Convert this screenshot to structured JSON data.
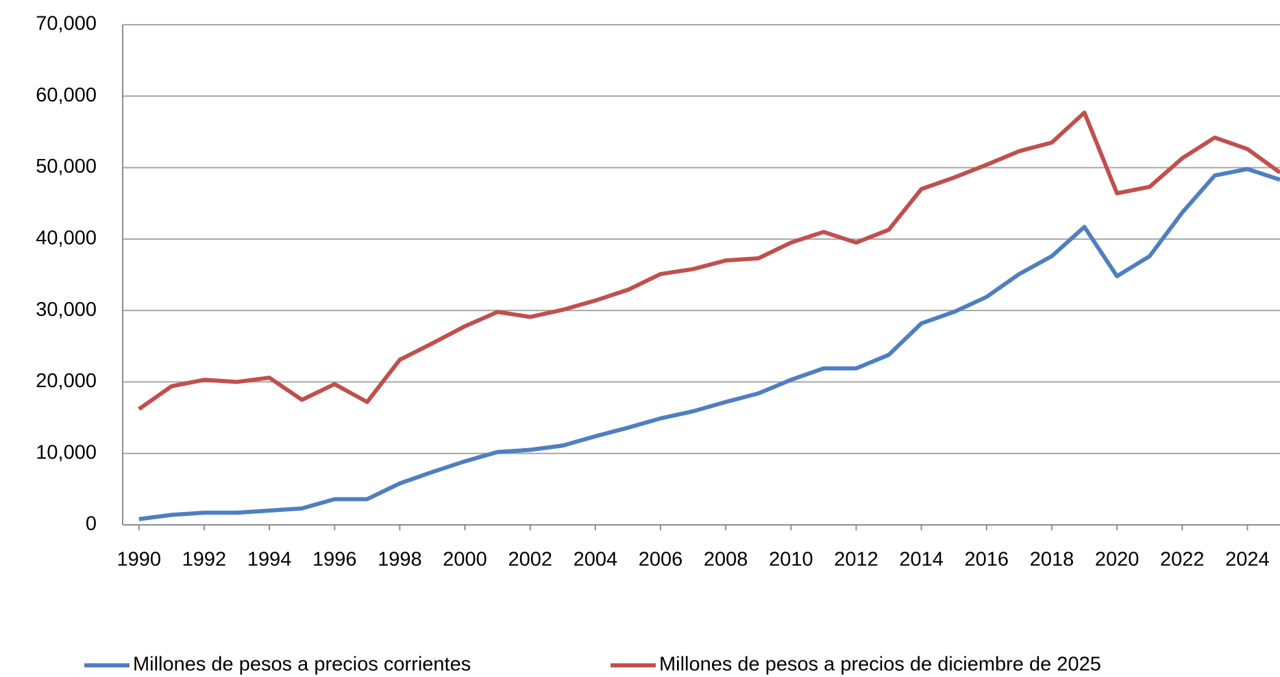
{
  "chart_data": {
    "type": "line",
    "x": [
      1990,
      1991,
      1992,
      1993,
      1994,
      1995,
      1996,
      1997,
      1998,
      1999,
      2000,
      2001,
      2002,
      2003,
      2004,
      2005,
      2006,
      2007,
      2008,
      2009,
      2010,
      2011,
      2012,
      2013,
      2014,
      2015,
      2016,
      2017,
      2018,
      2019,
      2020,
      2021,
      2022,
      2023,
      2024,
      2025
    ],
    "series": [
      {
        "name": "Millones de pesos a precios corrientes",
        "color": "#4f7fbf",
        "values": [
          800,
          1400,
          1700,
          1700,
          2000,
          2300,
          3600,
          3600,
          5800,
          7400,
          8900,
          10200,
          10500,
          11100,
          12400,
          13600,
          14900,
          15900,
          17200,
          18400,
          20300,
          21900,
          21900,
          23800,
          28200,
          29800,
          31900,
          35100,
          37600,
          41700,
          34800,
          37600,
          43700,
          48900,
          49800,
          48300
        ]
      },
      {
        "name": "Millones de pesos a precios de diciembre de 2025",
        "color": "#c0504d",
        "values": [
          16200,
          19400,
          20300,
          20000,
          20600,
          17500,
          19700,
          17200,
          23100,
          25400,
          27800,
          29800,
          29100,
          30100,
          31400,
          32900,
          35100,
          35800,
          37000,
          37300,
          39500,
          41000,
          39500,
          41300,
          47000,
          48600,
          50400,
          52300,
          53500,
          57700,
          46400,
          47300,
          51300,
          54200,
          52600,
          49300
        ]
      }
    ],
    "xlim": [
      1989.5,
      2025
    ],
    "xticks": [
      1990,
      1992,
      1994,
      1996,
      1998,
      2000,
      2002,
      2004,
      2006,
      2008,
      2010,
      2012,
      2014,
      2016,
      2018,
      2020,
      2022,
      2024
    ],
    "ylim": [
      0,
      70000
    ],
    "yticks": [
      0,
      {
        "value": 10000,
        "label": "10,000"
      },
      {
        "value": 20000,
        "label": "20,000"
      },
      {
        "value": 30000,
        "label": "30,000"
      },
      {
        "value": 40000,
        "label": "40,000"
      },
      {
        "value": 50000,
        "label": "50,000"
      },
      {
        "value": 60000,
        "label": "60,000"
      },
      {
        "value": 70000,
        "label": "70,000"
      }
    ],
    "grid": true,
    "legend": "bottom"
  }
}
